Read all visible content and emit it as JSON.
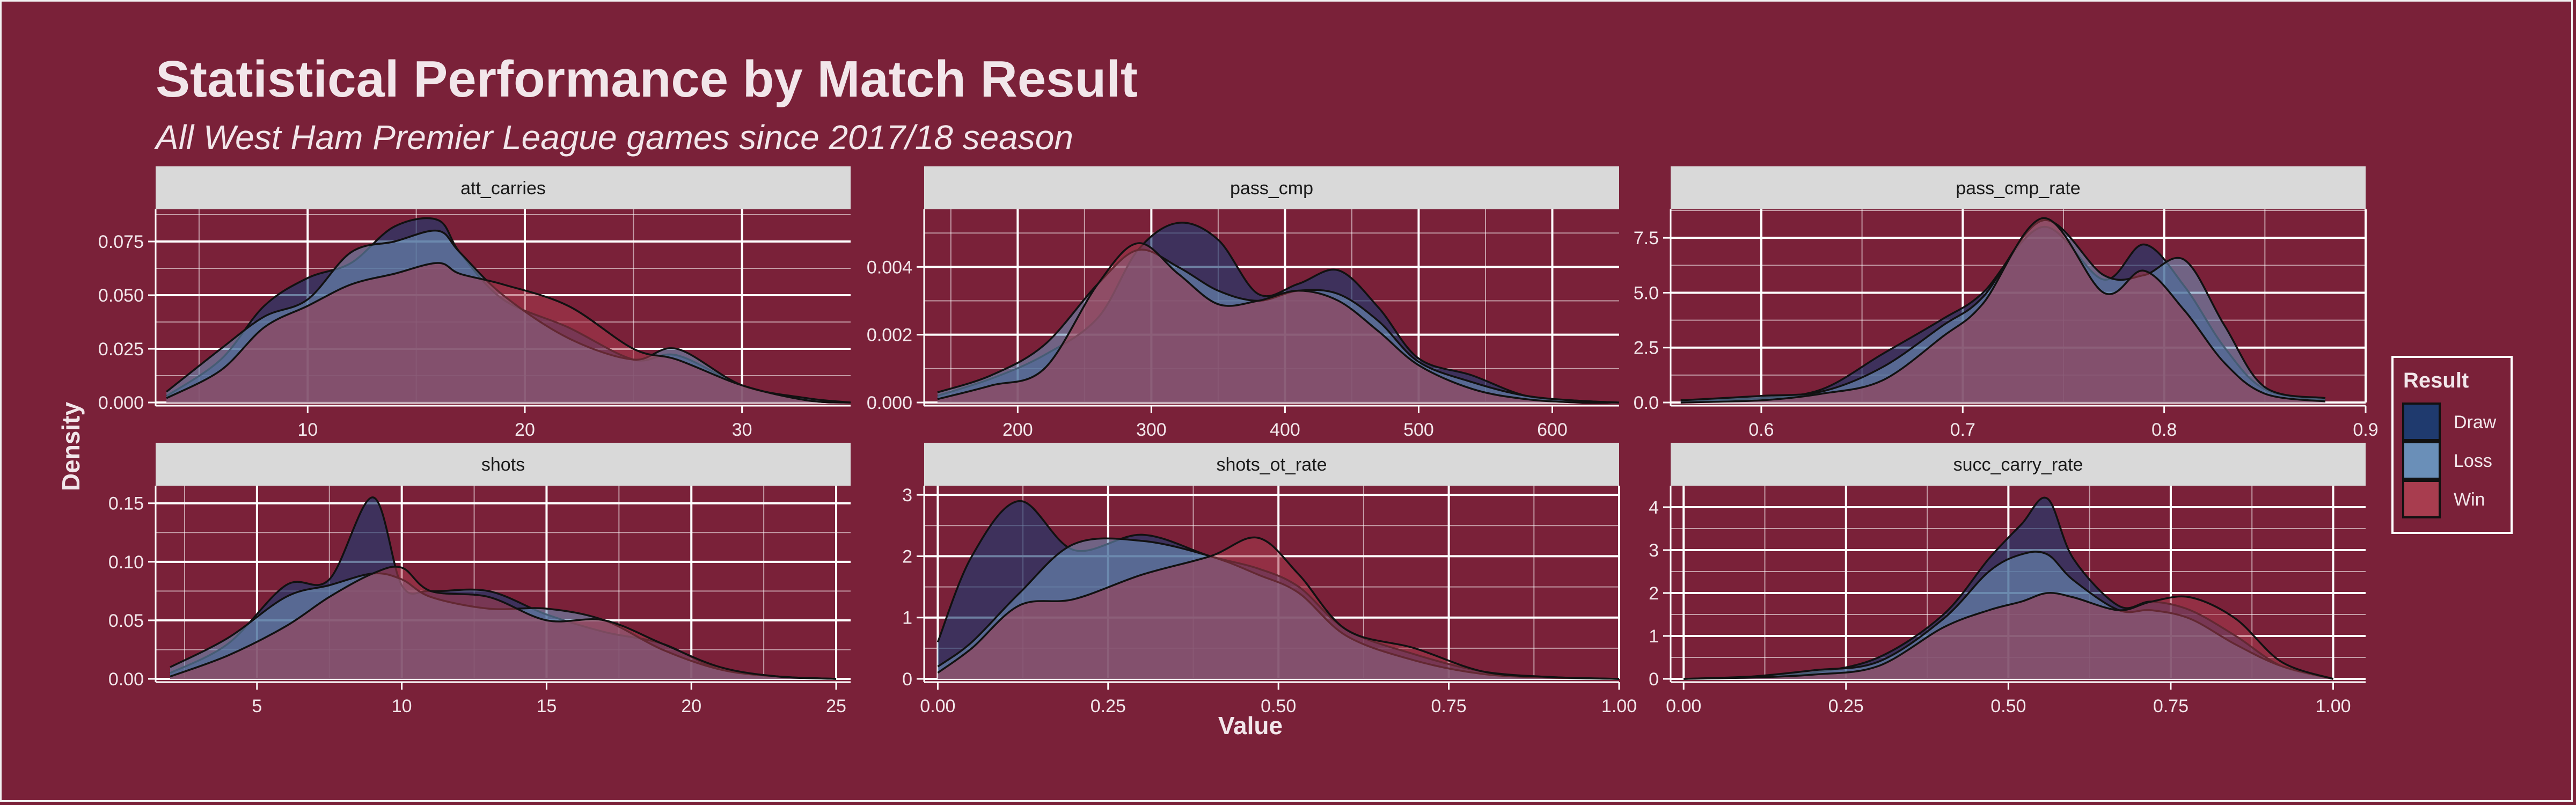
{
  "title": "Statistical Performance by Match Result",
  "subtitle": "All West Ham Premier League games since 2017/18 season",
  "xlabel": "Value",
  "ylabel": "Density",
  "legend": {
    "title": "Result",
    "items": [
      {
        "label": "Draw",
        "color": "#1f3a6e"
      },
      {
        "label": "Loss",
        "color": "#6a8fb8"
      },
      {
        "label": "Win",
        "color": "#a83d4f"
      }
    ]
  },
  "colors": {
    "background": "#7a2139",
    "strip_fill": "#d9d9d9",
    "grid": "#ffffff",
    "text": "#f2e6ea"
  },
  "chart_data": [
    {
      "type": "area",
      "panel": "att_carries",
      "xlim": [
        3,
        35
      ],
      "ylim": [
        0,
        0.09
      ],
      "xticks": [
        10,
        20,
        30
      ],
      "yticks": [
        0,
        0.025,
        0.05,
        0.075
      ],
      "ytick_labels": [
        "0.000",
        "0.025",
        "0.050",
        "0.075"
      ],
      "x": [
        3.5,
        6,
        8,
        10,
        12,
        14,
        16,
        17,
        19,
        22,
        25,
        27,
        30,
        33,
        35
      ],
      "series": [
        {
          "name": "Draw",
          "values": [
            0.003,
            0.02,
            0.045,
            0.058,
            0.065,
            0.082,
            0.085,
            0.07,
            0.048,
            0.035,
            0.02,
            0.022,
            0.008,
            0.001,
            0
          ]
        },
        {
          "name": "Loss",
          "values": [
            0.005,
            0.025,
            0.04,
            0.048,
            0.07,
            0.075,
            0.08,
            0.07,
            0.05,
            0.03,
            0.02,
            0.025,
            0.008,
            0.002,
            0
          ]
        },
        {
          "name": "Win",
          "values": [
            0.002,
            0.015,
            0.035,
            0.045,
            0.055,
            0.06,
            0.065,
            0.06,
            0.055,
            0.045,
            0.025,
            0.02,
            0.008,
            0.001,
            0
          ]
        }
      ]
    },
    {
      "type": "area",
      "panel": "pass_cmp",
      "xlim": [
        130,
        650
      ],
      "ylim": [
        0,
        0.0057
      ],
      "xticks": [
        200,
        300,
        400,
        500,
        600
      ],
      "yticks": [
        0,
        0.002,
        0.004
      ],
      "ytick_labels": [
        "0.000",
        "0.002",
        "0.004"
      ],
      "x": [
        140,
        180,
        220,
        260,
        290,
        320,
        350,
        380,
        410,
        440,
        470,
        500,
        540,
        580,
        620,
        650
      ],
      "series": [
        {
          "name": "Draw",
          "values": [
            0.0002,
            0.0007,
            0.0014,
            0.0025,
            0.0045,
            0.0053,
            0.0048,
            0.0032,
            0.0035,
            0.0039,
            0.0028,
            0.0013,
            0.0008,
            0.0002,
            5e-05,
            0
          ]
        },
        {
          "name": "Loss",
          "values": [
            0.0003,
            0.0008,
            0.0017,
            0.0035,
            0.0045,
            0.004,
            0.0033,
            0.003,
            0.0033,
            0.0032,
            0.0024,
            0.0012,
            0.0006,
            0.0002,
            5e-05,
            0
          ]
        },
        {
          "name": "Win",
          "values": [
            0.0001,
            0.0005,
            0.001,
            0.0035,
            0.0047,
            0.0038,
            0.0029,
            0.003,
            0.0033,
            0.003,
            0.0021,
            0.0011,
            0.0004,
            0.0001,
            0,
            0
          ]
        }
      ]
    },
    {
      "type": "area",
      "panel": "pass_cmp_rate",
      "xlim": [
        0.555,
        0.9
      ],
      "ylim": [
        0,
        8.8
      ],
      "xticks": [
        0.6,
        0.7,
        0.8,
        0.9
      ],
      "yticks": [
        0,
        2.5,
        5.0,
        7.5
      ],
      "ytick_labels": [
        "0.0",
        "2.5",
        "5.0",
        "7.5"
      ],
      "x": [
        0.56,
        0.6,
        0.63,
        0.66,
        0.69,
        0.71,
        0.74,
        0.77,
        0.79,
        0.81,
        0.83,
        0.85,
        0.88
      ],
      "series": [
        {
          "name": "Draw",
          "values": [
            0.1,
            0.2,
            0.6,
            2.2,
            3.8,
            5.0,
            8.0,
            5.6,
            7.2,
            5.3,
            2.5,
            0.6,
            0.1
          ]
        },
        {
          "name": "Loss",
          "values": [
            0.1,
            0.3,
            0.5,
            1.6,
            3.5,
            4.8,
            8.3,
            5.8,
            5.8,
            6.5,
            3.5,
            0.7,
            0.2
          ]
        },
        {
          "name": "Win",
          "values": [
            0,
            0.1,
            0.4,
            1.0,
            3.0,
            4.5,
            8.4,
            5.0,
            6.0,
            4.2,
            1.8,
            0.4,
            0.05
          ]
        }
      ]
    },
    {
      "type": "area",
      "panel": "shots",
      "xlim": [
        1.5,
        25.5
      ],
      "ylim": [
        0,
        0.165
      ],
      "xticks": [
        5,
        10,
        15,
        20,
        25
      ],
      "yticks": [
        0,
        0.05,
        0.1,
        0.15
      ],
      "ytick_labels": [
        "0.00",
        "0.05",
        "0.10",
        "0.15"
      ],
      "x": [
        2,
        4,
        6,
        7.5,
        9,
        10,
        11,
        13,
        15,
        17,
        19,
        21,
        23,
        25
      ],
      "series": [
        {
          "name": "Draw",
          "values": [
            0.005,
            0.03,
            0.08,
            0.085,
            0.155,
            0.08,
            0.075,
            0.075,
            0.055,
            0.04,
            0.03,
            0.008,
            0.002,
            0
          ]
        },
        {
          "name": "Loss",
          "values": [
            0.01,
            0.035,
            0.07,
            0.08,
            0.09,
            0.085,
            0.07,
            0.06,
            0.06,
            0.05,
            0.025,
            0.008,
            0.002,
            0
          ]
        },
        {
          "name": "Win",
          "values": [
            0.002,
            0.02,
            0.045,
            0.07,
            0.09,
            0.095,
            0.075,
            0.07,
            0.05,
            0.05,
            0.03,
            0.01,
            0.002,
            0
          ]
        }
      ]
    },
    {
      "type": "area",
      "panel": "shots_ot_rate",
      "xlim": [
        -0.02,
        1.0
      ],
      "ylim": [
        0,
        3.15
      ],
      "xticks": [
        0,
        0.25,
        0.5,
        0.75,
        1.0
      ],
      "yticks": [
        0,
        1,
        2,
        3
      ],
      "ytick_labels": [
        "0",
        "1",
        "2",
        "3"
      ],
      "x": [
        0,
        0.05,
        0.12,
        0.2,
        0.3,
        0.4,
        0.47,
        0.53,
        0.6,
        0.7,
        0.8,
        0.9,
        1.0
      ],
      "series": [
        {
          "name": "Draw",
          "values": [
            0.6,
            2.0,
            2.9,
            2.1,
            2.35,
            2.0,
            1.8,
            1.5,
            0.8,
            0.4,
            0.12,
            0.03,
            0
          ]
        },
        {
          "name": "Loss",
          "values": [
            0.2,
            0.6,
            1.4,
            2.2,
            2.25,
            2.0,
            1.7,
            1.4,
            0.7,
            0.3,
            0.08,
            0.02,
            0
          ]
        },
        {
          "name": "Win",
          "values": [
            0.1,
            0.5,
            1.2,
            1.3,
            1.7,
            2.0,
            2.3,
            1.7,
            0.8,
            0.5,
            0.12,
            0.03,
            0
          ]
        }
      ]
    },
    {
      "type": "area",
      "panel": "succ_carry_rate",
      "xlim": [
        -0.02,
        1.05
      ],
      "ylim": [
        0,
        4.5
      ],
      "xticks": [
        0,
        0.25,
        0.5,
        0.75,
        1.0
      ],
      "yticks": [
        0,
        1,
        2,
        3,
        4
      ],
      "ytick_labels": [
        "0",
        "1",
        "2",
        "3",
        "4"
      ],
      "x": [
        0,
        0.1,
        0.2,
        0.3,
        0.4,
        0.47,
        0.52,
        0.56,
        0.6,
        0.67,
        0.72,
        0.78,
        0.85,
        0.92,
        1.0
      ],
      "series": [
        {
          "name": "Draw",
          "values": [
            0,
            0.05,
            0.15,
            0.5,
            1.5,
            2.8,
            3.6,
            4.2,
            2.8,
            1.7,
            1.8,
            1.6,
            1.0,
            0.3,
            0
          ]
        },
        {
          "name": "Loss",
          "values": [
            0,
            0.05,
            0.2,
            0.4,
            1.4,
            2.5,
            2.9,
            2.9,
            2.3,
            1.6,
            1.6,
            1.4,
            0.8,
            0.3,
            0
          ]
        },
        {
          "name": "Win",
          "values": [
            0,
            0.03,
            0.1,
            0.3,
            1.2,
            1.6,
            1.8,
            2.0,
            1.9,
            1.6,
            1.8,
            1.9,
            1.4,
            0.4,
            0
          ]
        }
      ]
    }
  ]
}
